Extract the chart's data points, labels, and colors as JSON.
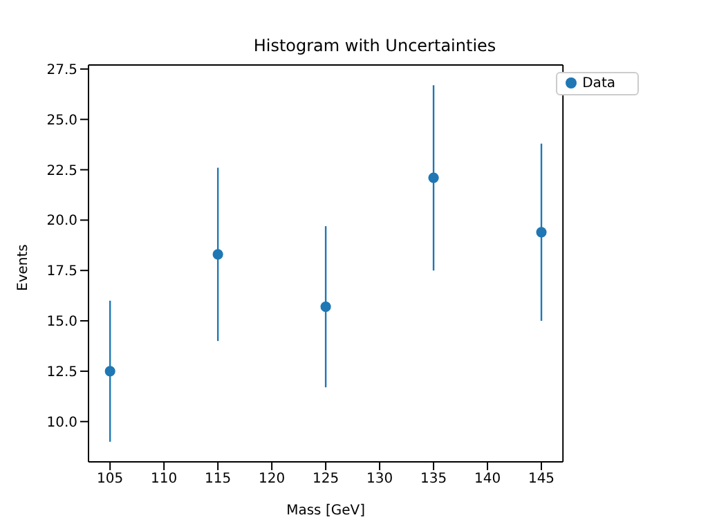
{
  "chart_data": {
    "type": "scatter",
    "title": "Histogram with Uncertainties",
    "xlabel": "Mass [GeV]",
    "ylabel": "Events",
    "x": [
      105,
      115,
      125,
      135,
      145
    ],
    "series": [
      {
        "name": "Data",
        "color": "#1f77b4",
        "values": [
          12.5,
          18.3,
          15.7,
          22.1,
          19.4
        ],
        "errors": [
          3.5,
          4.3,
          4.0,
          4.6,
          4.4
        ]
      }
    ],
    "xlim": [
      103,
      147
    ],
    "xticks": [
      105,
      110,
      115,
      120,
      125,
      130,
      135,
      140,
      145
    ],
    "ylim": [
      8.0,
      27.7
    ],
    "yticks": [
      {
        "value": 10,
        "label": "10.0"
      },
      12.5,
      {
        "value": 15,
        "label": "15.0"
      },
      17.5,
      {
        "value": 20,
        "label": "20.0"
      },
      22.5,
      {
        "value": 25,
        "label": "25.0"
      },
      27.5
    ],
    "marker": "circle",
    "legend": "top right",
    "grid": false
  }
}
